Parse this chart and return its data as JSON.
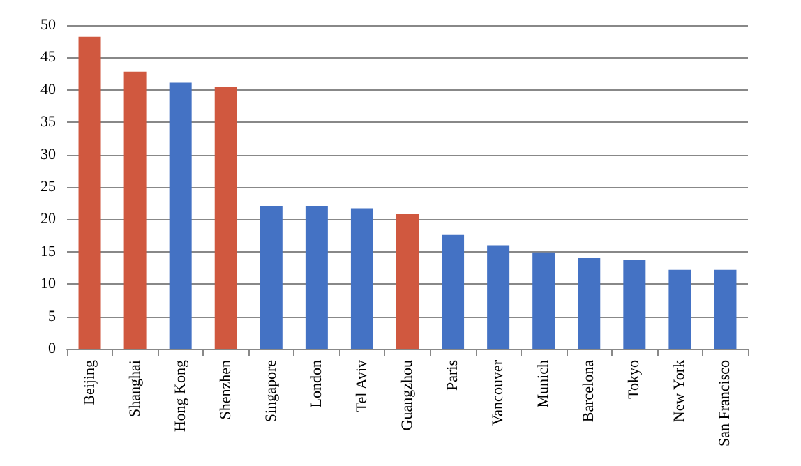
{
  "chart_data": {
    "type": "bar",
    "categories": [
      "Beijing",
      "Shanghai",
      "Hong Kong",
      "Shenzhen",
      "Singapore",
      "London",
      "Tel Aviv",
      "Guangzhou",
      "Paris",
      "Vancouver",
      "Munich",
      "Barcelona",
      "Tokyo",
      "New York",
      "San Francisco"
    ],
    "values": [
      48.2,
      42.8,
      41.1,
      40.4,
      22.1,
      22.1,
      21.7,
      20.8,
      17.6,
      16.0,
      14.9,
      14.0,
      13.8,
      12.2,
      12.2
    ],
    "colors": [
      "#d0583f",
      "#d0583f",
      "#4472c4",
      "#d0583f",
      "#4472c4",
      "#4472c4",
      "#4472c4",
      "#d0583f",
      "#4472c4",
      "#4472c4",
      "#4472c4",
      "#4472c4",
      "#4472c4",
      "#4472c4",
      "#4472c4"
    ],
    "ylim": [
      0,
      50
    ],
    "yticks": [
      0,
      5,
      10,
      15,
      20,
      25,
      30,
      35,
      40,
      45,
      50
    ],
    "grid": "y"
  }
}
